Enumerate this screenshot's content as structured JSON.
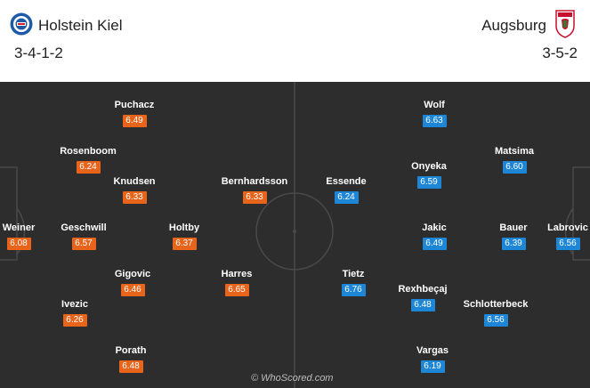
{
  "header": {
    "home": {
      "name": "Holstein Kiel",
      "formation": "3-4-1-2",
      "crest_icon": "holstein-kiel-crest"
    },
    "away": {
      "name": "Augsburg",
      "formation": "3-5-2",
      "crest_icon": "augsburg-crest"
    }
  },
  "home_players": [
    {
      "name": "Puchacz",
      "rating": "6.49"
    },
    {
      "name": "Rosenboom",
      "rating": "6.24"
    },
    {
      "name": "Knudsen",
      "rating": "6.33"
    },
    {
      "name": "Bernhardsson",
      "rating": "6.33"
    },
    {
      "name": "Weiner",
      "rating": "6.08"
    },
    {
      "name": "Geschwill",
      "rating": "6.57"
    },
    {
      "name": "Holtby",
      "rating": "6.37"
    },
    {
      "name": "Gigovic",
      "rating": "6.46"
    },
    {
      "name": "Harres",
      "rating": "6.65"
    },
    {
      "name": "Ivezic",
      "rating": "6.26"
    },
    {
      "name": "Porath",
      "rating": "6.48"
    }
  ],
  "away_players": [
    {
      "name": "Wolf",
      "rating": "6.63"
    },
    {
      "name": "Matsima",
      "rating": "6.60"
    },
    {
      "name": "Essende",
      "rating": "6.24"
    },
    {
      "name": "Onyeka",
      "rating": "6.59"
    },
    {
      "name": "Jakic",
      "rating": "6.49"
    },
    {
      "name": "Bauer",
      "rating": "6.39"
    },
    {
      "name": "Labrovic",
      "rating": "6.56"
    },
    {
      "name": "Tietz",
      "rating": "6.76"
    },
    {
      "name": "Rexhbeçaj",
      "rating": "6.48"
    },
    {
      "name": "Schlotterbeck",
      "rating": "6.56"
    },
    {
      "name": "Vargas",
      "rating": "6.19"
    }
  ],
  "watermark": "© WhoScored.com",
  "colors": {
    "home_badge": "#e8641b",
    "away_badge": "#1d86d6",
    "pitch": "#2d2d2d"
  }
}
